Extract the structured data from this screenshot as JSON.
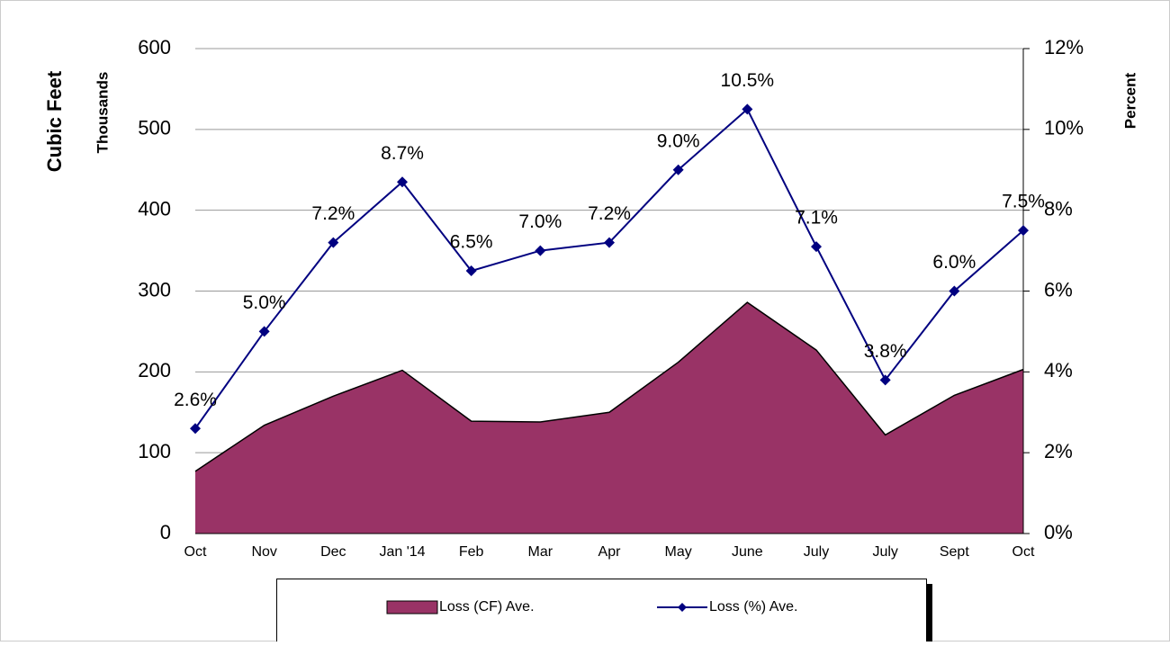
{
  "chart_data": {
    "type": "combo",
    "y_label_main": "Cubic Feet",
    "y_label_sub": "Thousands",
    "y2_label": "Percent",
    "categories": [
      "Oct",
      "Nov",
      "Dec",
      "Jan '14",
      "Feb",
      "Mar",
      "Apr",
      "May",
      "June",
      "July",
      "July",
      "Sept",
      "Oct"
    ],
    "series": [
      {
        "name": "Loss (CF) Ave.",
        "type": "area",
        "color": "#993366",
        "values": [
          77,
          134,
          170,
          202,
          139,
          138,
          150,
          212,
          286,
          227,
          122,
          171,
          203
        ]
      },
      {
        "name": "Loss (%) Ave.",
        "type": "line",
        "axis": "y2",
        "color": "#000080",
        "values": [
          2.6,
          5.0,
          7.2,
          8.7,
          6.5,
          7.0,
          7.2,
          9.0,
          10.5,
          7.1,
          3.8,
          6.0,
          7.5
        ],
        "value_labels": [
          "2.6%",
          "5.0%",
          "7.2%",
          "8.7%",
          "6.5%",
          "7.0%",
          "7.2%",
          "9.0%",
          "10.5%",
          "7.1%",
          "3.8%",
          "6.0%",
          "7.5%"
        ]
      }
    ],
    "ylim": [
      0,
      600
    ],
    "yticks": [
      0,
      100,
      200,
      300,
      400,
      500,
      600
    ],
    "y2lim": [
      0,
      12
    ],
    "y2ticks": [
      {
        "value": 0,
        "label": "0%"
      },
      {
        "value": 2,
        "label": "2%"
      },
      {
        "value": 4,
        "label": "4%"
      },
      {
        "value": 6,
        "label": "6%"
      },
      {
        "value": 8,
        "label": "8%"
      },
      {
        "value": 10,
        "label": "10%"
      },
      {
        "value": 12,
        "label": "12%"
      }
    ],
    "grid": true,
    "legend": "bottom"
  }
}
